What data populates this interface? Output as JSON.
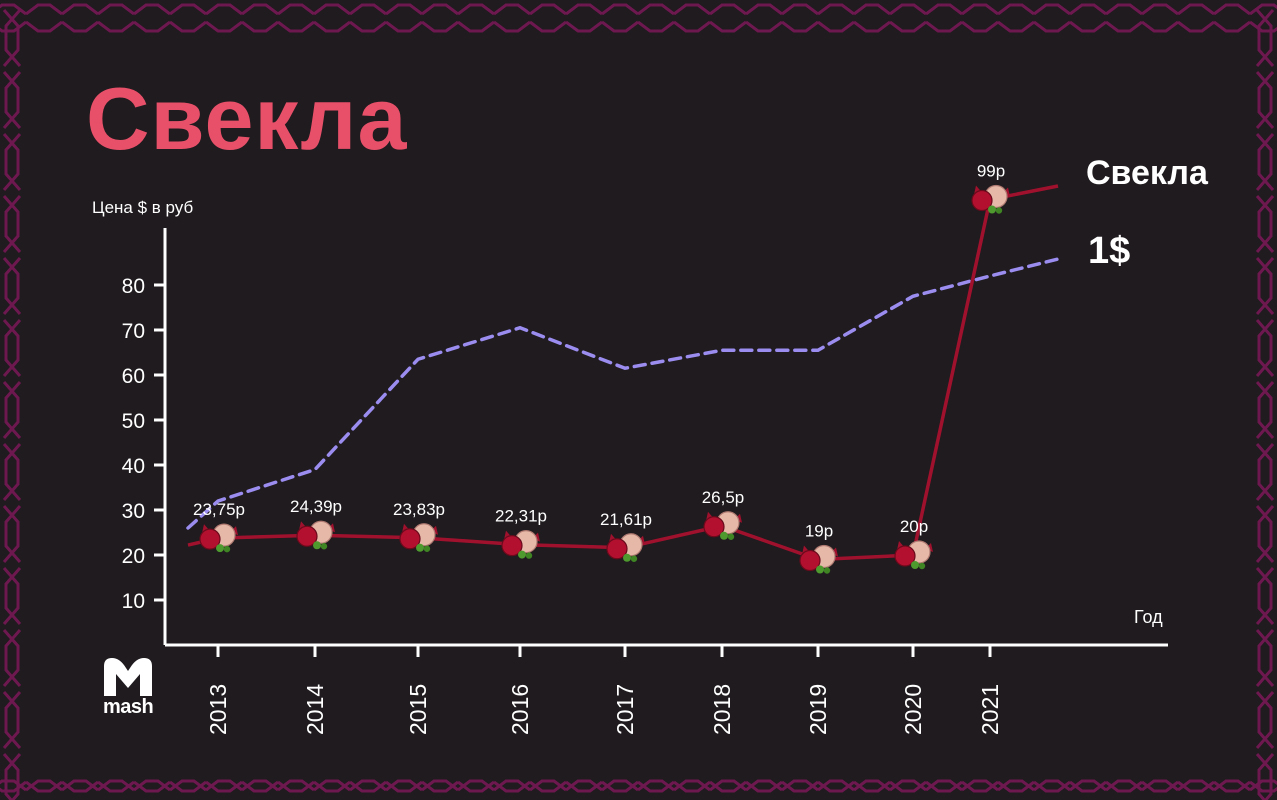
{
  "header": {
    "title": "Свекла"
  },
  "colors": {
    "background": "#1f1b1e",
    "title": "#e8506a",
    "beet_line": "#a0112e",
    "usd_line": "#9b8cf0",
    "frame_pattern": "#6e1850",
    "axis": "#ffffff",
    "text": "#ffffff"
  },
  "legend": {
    "beet_label": "Свекла",
    "usd_label": "1$",
    "placement": "right"
  },
  "logo": {
    "text": "mash"
  },
  "chart_data": {
    "type": "line",
    "title": "Свекла",
    "ylabel": "Цена $ в руб",
    "xlabel": "Год",
    "ylim": [
      0,
      90
    ],
    "y_ticks": [
      10,
      20,
      30,
      40,
      50,
      60,
      70,
      80
    ],
    "categories": [
      "2013",
      "2014",
      "2015",
      "2016",
      "2017",
      "2018",
      "2019",
      "2020",
      "2021"
    ],
    "grid": false,
    "series": [
      {
        "name": "Свекла",
        "style": "solid",
        "marker": "beet-icon",
        "values": [
          23.75,
          24.39,
          23.83,
          22.31,
          21.61,
          26.5,
          19,
          20,
          99
        ],
        "data_labels": [
          "23,75р",
          "24,39р",
          "23,83р",
          "22,31р",
          "21,61р",
          "26,5р",
          "19р",
          "20р",
          "99р"
        ]
      },
      {
        "name": "1$",
        "style": "dashed",
        "values": [
          32,
          39,
          63.5,
          70.5,
          61.5,
          65.5,
          65.5,
          77.5,
          82
        ]
      }
    ]
  }
}
